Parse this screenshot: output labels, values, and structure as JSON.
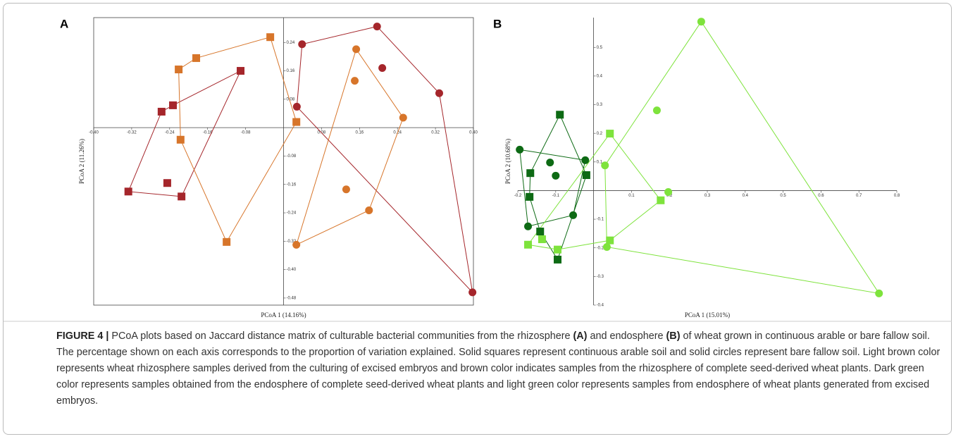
{
  "chart_data": [
    {
      "type": "scatter",
      "panel_label": "A",
      "xlabel": "PCoA 1 (14.16%)",
      "ylabel": "PCoA 2 (11.26%)",
      "frame": true,
      "xlim": [
        -0.4,
        0.4
      ],
      "ylim": [
        -0.5,
        0.31
      ],
      "xticks": [
        {
          "value": -0.4,
          "label": "-0.40"
        },
        -0.32,
        -0.24,
        -0.16,
        -0.08,
        0.08,
        0.16,
        0.24,
        0.32,
        {
          "value": 0.4,
          "label": "0.40"
        }
      ],
      "yticks": [
        0.24,
        0.16,
        0.08,
        -0.08,
        -0.16,
        -0.24,
        -0.32,
        {
          "value": -0.4,
          "label": "-0.40"
        },
        -0.48
      ],
      "series": [
        {
          "color": "#a5262b",
          "marker": "square",
          "x": [
            -0.0905,
            -0.233,
            -0.257,
            -0.327,
            -0.215,
            -0.245
          ],
          "values": [
            0.16,
            0.063,
            0.045,
            -0.18,
            -0.194,
            -0.156
          ]
        },
        {
          "color": "#d7752a",
          "marker": "square",
          "x": [
            -0.028,
            -0.184,
            -0.221,
            -0.217,
            -0.12,
            0.027
          ],
          "values": [
            0.255,
            0.196,
            0.164,
            -0.034,
            -0.322,
            0.016
          ]
        },
        {
          "color": "#a5262b",
          "marker": "circle",
          "x": [
            0.197,
            0.039,
            0.208,
            0.328,
            0.028,
            0.398
          ],
          "values": [
            0.285,
            0.235,
            0.168,
            0.097,
            0.059,
            -0.464
          ]
        },
        {
          "color": "#d7752a",
          "marker": "circle",
          "x": [
            0.153,
            0.15,
            0.252,
            0.18,
            0.132,
            0.027
          ],
          "values": [
            0.221,
            0.132,
            0.028,
            -0.233,
            -0.174,
            -0.33
          ]
        }
      ]
    },
    {
      "type": "scatter",
      "panel_label": "B",
      "xlabel": "PCoA 1 (15.01%)",
      "ylabel": "PCoA 2 (10.68%)",
      "frame": false,
      "xlim": [
        -0.2,
        0.8
      ],
      "ylim": [
        -0.4,
        0.604
      ],
      "xticks": [
        -0.2,
        -0.1,
        0.1,
        0.2,
        0.3,
        0.4,
        0.5,
        0.6,
        0.7,
        0.8
      ],
      "yticks": [
        0.5,
        0.4,
        0.3,
        0.2,
        0.1,
        -0.1,
        -0.2,
        -0.3,
        -0.4
      ],
      "series": [
        {
          "color": "#0d6a14",
          "marker": "square",
          "x": [
            -0.089,
            -0.167,
            -0.169,
            -0.141,
            -0.019,
            -0.095
          ],
          "values": [
            0.265,
            0.061,
            -0.022,
            -0.143,
            0.054,
            -0.241
          ]
        },
        {
          "color": "#0d6a14",
          "marker": "circle",
          "x": [
            -0.195,
            -0.115,
            -0.1,
            -0.022,
            -0.054,
            -0.173
          ],
          "values": [
            0.143,
            0.098,
            0.052,
            0.106,
            -0.086,
            -0.125
          ]
        },
        {
          "color": "#7ee33c",
          "marker": "square",
          "x": [
            0.043,
            0.177,
            0.043,
            -0.095,
            -0.136,
            -0.173
          ],
          "values": [
            0.199,
            -0.034,
            -0.174,
            -0.206,
            -0.17,
            -0.189
          ]
        },
        {
          "color": "#7ee33c",
          "marker": "circle",
          "x": [
            0.284,
            0.167,
            0.197,
            0.03,
            0.035,
            0.753
          ],
          "values": [
            0.59,
            0.28,
            -0.005,
            0.088,
            -0.197,
            -0.359
          ]
        }
      ]
    }
  ],
  "caption": {
    "label": "FIGURE 4 |",
    "text": [
      "PCoA plots based on Jaccard distance matrix of culturable bacterial communities from the rhizosphere ",
      "(A)",
      " and endosphere ",
      "(B)",
      " of wheat grown in continuous arable or bare fallow soil. The percentage shown on each axis corresponds to the proportion of variation explained. Solid squares represent continuous arable soil and solid circles represent bare fallow soil. Light brown color represents wheat rhizosphere samples derived from the culturing of excised embryos and brown color indicates samples from the rhizosphere of complete seed-derived wheat plants. Dark green color represents samples obtained from the endosphere of complete seed-derived wheat plants and light green color represents samples from endosphere of wheat plants generated from excised embryos."
    ]
  }
}
